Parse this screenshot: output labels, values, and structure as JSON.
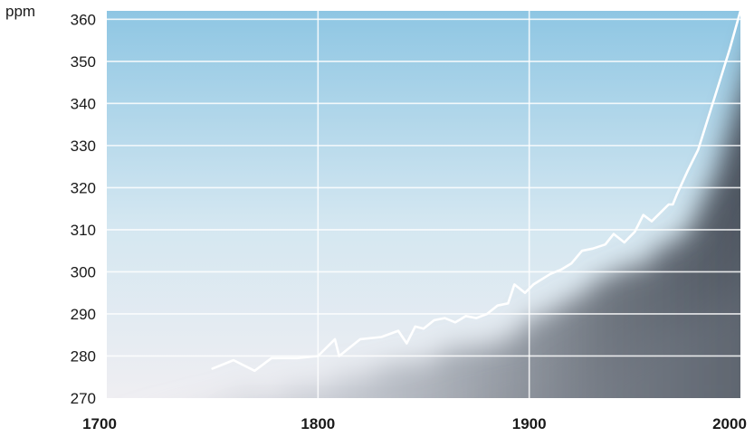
{
  "chart_data": {
    "type": "line",
    "title": "",
    "ylabel": "ppm",
    "xlabel": "",
    "xlim": [
      1700,
      2000
    ],
    "ylim": [
      270,
      362
    ],
    "x_ticks": [
      "1700",
      "1800",
      "1900",
      "2000"
    ],
    "y_ticks": [
      "270",
      "280",
      "290",
      "300",
      "310",
      "320",
      "330",
      "340",
      "350",
      "360"
    ],
    "grid": true,
    "legend": "none",
    "colors": {
      "line": "#ffffff",
      "bg_top": "#8ec6e3",
      "bg_mid": "#d4e7f1",
      "bg_bottom": "#efeef2",
      "shadow_dark": "#3e4550",
      "shadow_light": "#aab2bd"
    },
    "series": [
      {
        "x": [
          1750,
          1760,
          1770,
          1778,
          1790,
          1800,
          1808,
          1810,
          1820,
          1830,
          1838,
          1842,
          1846,
          1850,
          1855,
          1860,
          1865,
          1870,
          1875,
          1880,
          1885,
          1890,
          1893,
          1898,
          1902,
          1910,
          1915,
          1920,
          1925,
          1930,
          1936,
          1940,
          1945,
          1950,
          1954,
          1958,
          1962,
          1966,
          1968,
          1970,
          1975,
          1980,
          1985,
          1990,
          1995,
          2000
        ],
        "y": [
          277,
          279,
          276.5,
          279.5,
          279.5,
          280,
          284,
          280,
          284,
          284.5,
          286,
          283,
          287,
          286.5,
          288.5,
          289,
          288,
          289.5,
          289,
          290,
          292,
          292.5,
          297,
          295,
          297,
          299.5,
          300.5,
          302,
          305,
          305.5,
          306.5,
          309,
          307,
          309.5,
          313.5,
          312,
          314,
          316,
          316,
          318.5,
          324,
          329,
          337,
          345,
          353,
          362
        ]
      }
    ]
  }
}
